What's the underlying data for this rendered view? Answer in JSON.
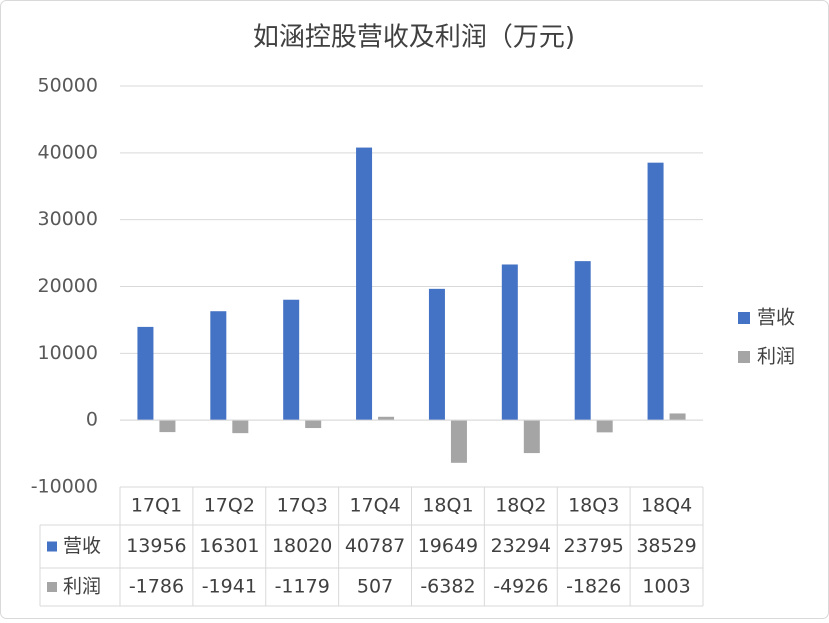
{
  "chart_data": {
    "type": "bar",
    "title": "如涵控股营收及利润（万元)",
    "categories": [
      "17Q1",
      "17Q2",
      "17Q3",
      "17Q4",
      "18Q1",
      "18Q2",
      "18Q3",
      "18Q4"
    ],
    "series": [
      {
        "name": "营收",
        "color": "#4472c4",
        "values": [
          13956,
          16301,
          18020,
          40787,
          19649,
          23294,
          23795,
          38529
        ]
      },
      {
        "name": "利润",
        "color": "#a5a5a5",
        "values": [
          -1786,
          -1941,
          -1179,
          507,
          -6382,
          -4926,
          -1826,
          1003
        ]
      }
    ],
    "ylim": [
      -10000,
      50000
    ],
    "yticks": [
      -10000,
      0,
      10000,
      20000,
      30000,
      40000,
      50000
    ],
    "grid": true,
    "legend": "right",
    "data_table": true
  }
}
